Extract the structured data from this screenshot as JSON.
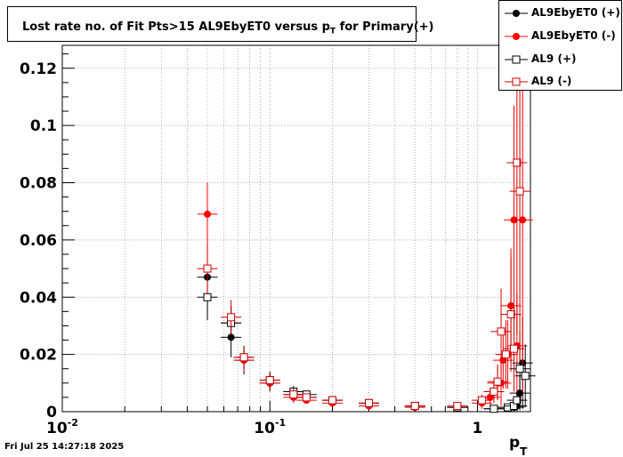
{
  "chart_data": {
    "type": "scatter",
    "title_main": "Lost rate no. of Fit Pts>15 AL9EbyET0 versus p",
    "title_sub": "T",
    "title_tail": " for Primary(+)",
    "xlabel_main": "p",
    "xlabel_sub": "T",
    "ylabel": "",
    "x_scale": "log",
    "xlim": [
      0.01,
      1.8
    ],
    "ylim": [
      0,
      0.128
    ],
    "grid": true,
    "legend_placement": "top-right",
    "y_ticks": [
      "0",
      "0.02",
      "0.04",
      "0.06",
      "0.08",
      "0.1",
      "0.12"
    ],
    "x_ticks": [
      {
        "base": "10",
        "exp": "-2"
      },
      {
        "base": "10",
        "exp": "-1"
      },
      {
        "base": "1",
        "exp": ""
      }
    ],
    "series": [
      {
        "name": "AL9EbyET0 (+)",
        "color": "#000000",
        "marker": "filled-circle",
        "points": [
          {
            "x": 0.05,
            "y": 0.047,
            "err": 0.011
          },
          {
            "x": 0.065,
            "y": 0.026,
            "err": 0.007
          },
          {
            "x": 0.075,
            "y": 0.018,
            "err": 0.005
          },
          {
            "x": 0.1,
            "y": 0.01,
            "err": 0.003
          },
          {
            "x": 0.13,
            "y": 0.006,
            "err": 0.002
          },
          {
            "x": 0.15,
            "y": 0.005,
            "err": 0.001
          },
          {
            "x": 0.2,
            "y": 0.004,
            "err": 0.001
          },
          {
            "x": 0.3,
            "y": 0.003,
            "err": 0.001
          },
          {
            "x": 0.5,
            "y": 0.002,
            "err": 0.001
          },
          {
            "x": 0.8,
            "y": 0.0015,
            "err": 0.001
          },
          {
            "x": 1.2,
            "y": 0.001,
            "err": 0.001
          },
          {
            "x": 1.4,
            "y": 0.0015,
            "err": 0.001
          },
          {
            "x": 1.5,
            "y": 0.0015,
            "err": 0.0015
          },
          {
            "x": 1.55,
            "y": 0.002,
            "err": 0.002
          },
          {
            "x": 1.6,
            "y": 0.0065,
            "err": 0.006
          },
          {
            "x": 1.65,
            "y": 0.017,
            "err": 0.016
          }
        ]
      },
      {
        "name": "AL9EbyET0 (-)",
        "color": "#ff0000",
        "marker": "filled-circle",
        "points": [
          {
            "x": 0.05,
            "y": 0.069,
            "err": 0.011
          },
          {
            "x": 0.065,
            "y": 0.031,
            "err": 0.006
          },
          {
            "x": 0.075,
            "y": 0.018,
            "err": 0.004
          },
          {
            "x": 0.1,
            "y": 0.01,
            "err": 0.003
          },
          {
            "x": 0.13,
            "y": 0.005,
            "err": 0.002
          },
          {
            "x": 0.15,
            "y": 0.004,
            "err": 0.001
          },
          {
            "x": 0.2,
            "y": 0.003,
            "err": 0.001
          },
          {
            "x": 0.3,
            "y": 0.002,
            "err": 0.001
          },
          {
            "x": 0.5,
            "y": 0.0015,
            "err": 0.001
          },
          {
            "x": 0.8,
            "y": 0.0015,
            "err": 0.001
          },
          {
            "x": 1.05,
            "y": 0.003,
            "err": 0.002
          },
          {
            "x": 1.15,
            "y": 0.005,
            "err": 0.003
          },
          {
            "x": 1.25,
            "y": 0.01,
            "err": 0.006
          },
          {
            "x": 1.3,
            "y": 0.01,
            "err": 0.008
          },
          {
            "x": 1.33,
            "y": 0.018,
            "err": 0.01
          },
          {
            "x": 1.4,
            "y": 0.02,
            "err": 0.012
          },
          {
            "x": 1.45,
            "y": 0.037,
            "err": 0.02
          },
          {
            "x": 1.5,
            "y": 0.067,
            "err": 0.04
          },
          {
            "x": 1.55,
            "y": 0.023,
            "err": 0.018
          },
          {
            "x": 1.65,
            "y": 0.067,
            "err": 0.06
          }
        ]
      },
      {
        "name": "AL9 (+)",
        "color": "#000000",
        "marker": "open-square",
        "points": [
          {
            "x": 0.05,
            "y": 0.04,
            "err": 0.008
          },
          {
            "x": 0.065,
            "y": 0.031,
            "err": 0.006
          },
          {
            "x": 0.075,
            "y": 0.019,
            "err": 0.004
          },
          {
            "x": 0.1,
            "y": 0.011,
            "err": 0.003
          },
          {
            "x": 0.13,
            "y": 0.007,
            "err": 0.002
          },
          {
            "x": 0.15,
            "y": 0.006,
            "err": 0.001
          },
          {
            "x": 0.2,
            "y": 0.004,
            "err": 0.001
          },
          {
            "x": 0.3,
            "y": 0.003,
            "err": 0.001
          },
          {
            "x": 0.5,
            "y": 0.002,
            "err": 0.001
          },
          {
            "x": 0.8,
            "y": 0.0015,
            "err": 0.001
          },
          {
            "x": 1.2,
            "y": 0.001,
            "err": 0.001
          },
          {
            "x": 1.4,
            "y": 0.0015,
            "err": 0.001
          },
          {
            "x": 1.5,
            "y": 0.002,
            "err": 0.002
          },
          {
            "x": 1.55,
            "y": 0.004,
            "err": 0.003
          },
          {
            "x": 1.6,
            "y": 0.015,
            "err": 0.013
          },
          {
            "x": 1.7,
            "y": 0.0125,
            "err": 0.011
          }
        ]
      },
      {
        "name": "AL9 (-)",
        "color": "#cc0000",
        "marker": "open-square",
        "points": [
          {
            "x": 0.05,
            "y": 0.05,
            "err": 0.009
          },
          {
            "x": 0.065,
            "y": 0.033,
            "err": 0.006
          },
          {
            "x": 0.075,
            "y": 0.019,
            "err": 0.004
          },
          {
            "x": 0.1,
            "y": 0.011,
            "err": 0.003
          },
          {
            "x": 0.13,
            "y": 0.006,
            "err": 0.002
          },
          {
            "x": 0.15,
            "y": 0.005,
            "err": 0.001
          },
          {
            "x": 0.2,
            "y": 0.004,
            "err": 0.001
          },
          {
            "x": 0.3,
            "y": 0.003,
            "err": 0.001
          },
          {
            "x": 0.5,
            "y": 0.002,
            "err": 0.001
          },
          {
            "x": 0.8,
            "y": 0.002,
            "err": 0.001
          },
          {
            "x": 1.05,
            "y": 0.004,
            "err": 0.002
          },
          {
            "x": 1.2,
            "y": 0.007,
            "err": 0.004
          },
          {
            "x": 1.25,
            "y": 0.0105,
            "err": 0.006
          },
          {
            "x": 1.3,
            "y": 0.028,
            "err": 0.015
          },
          {
            "x": 1.37,
            "y": 0.02,
            "err": 0.012
          },
          {
            "x": 1.45,
            "y": 0.034,
            "err": 0.02
          },
          {
            "x": 1.5,
            "y": 0.022,
            "err": 0.015
          },
          {
            "x": 1.55,
            "y": 0.087,
            "err": 0.06
          },
          {
            "x": 1.6,
            "y": 0.077,
            "err": 0.06
          }
        ]
      }
    ]
  },
  "footer": {
    "timestamp": "Fri Jul 25 14:27:18 2025"
  }
}
